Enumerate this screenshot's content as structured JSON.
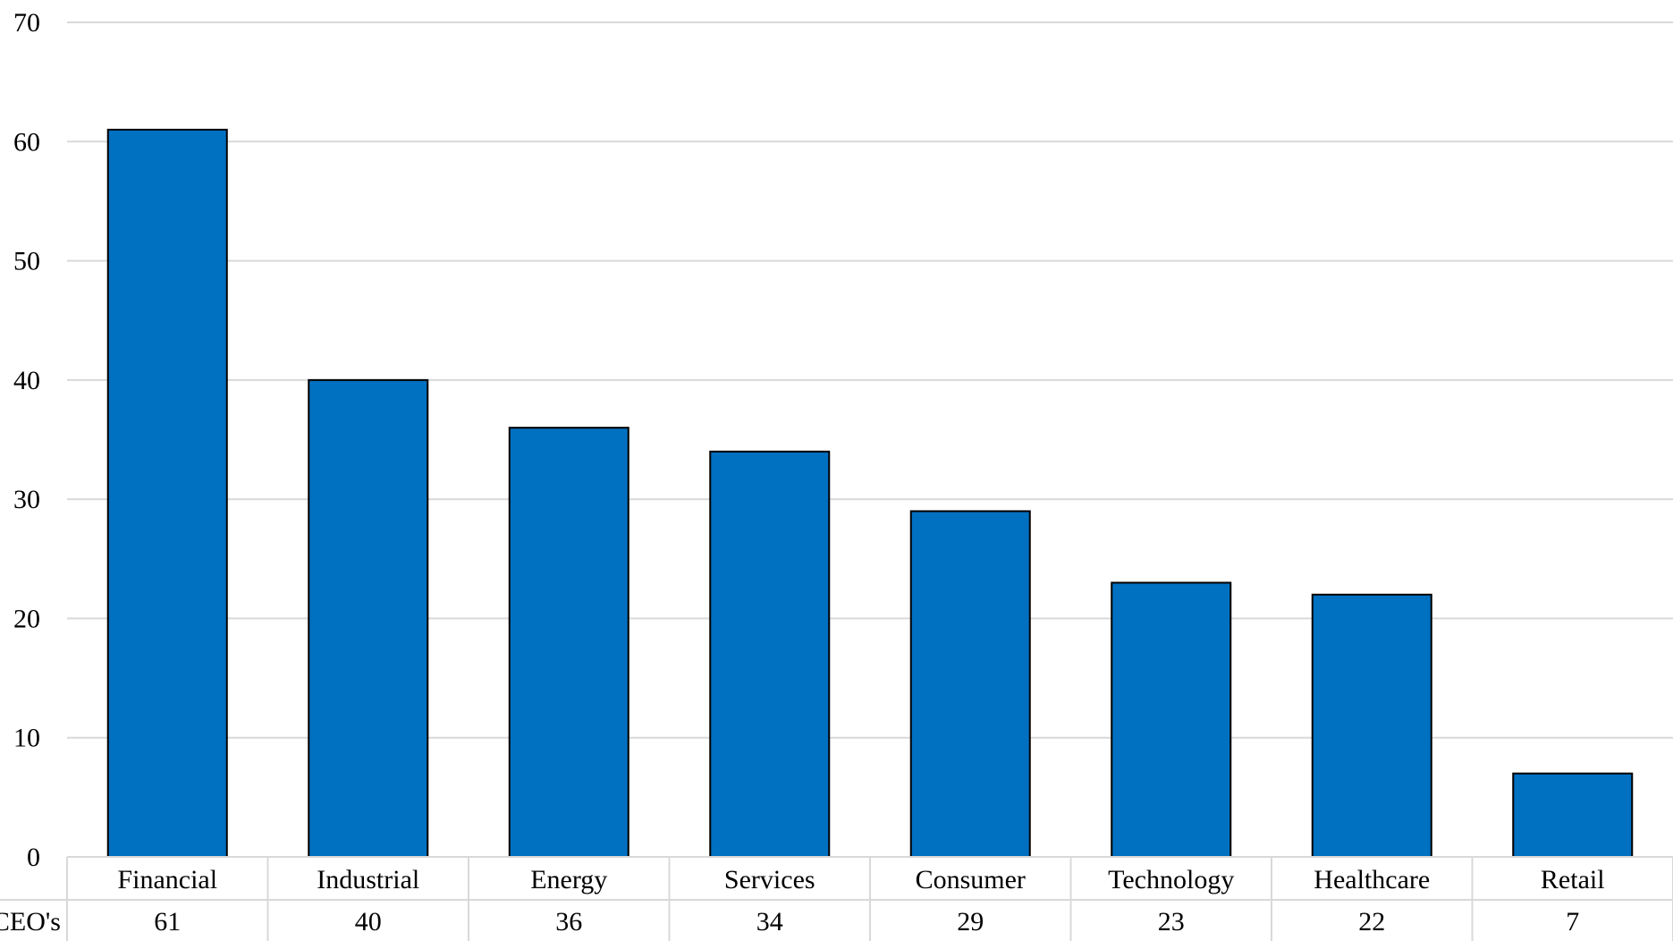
{
  "chart_data": {
    "type": "bar",
    "categories": [
      "Financial",
      "Industrial",
      "Energy",
      "Services",
      "Consumer",
      "Technology",
      "Healthcare",
      "Retail"
    ],
    "series": [
      {
        "name": "CEO's",
        "values": [
          61,
          40,
          36,
          34,
          29,
          23,
          22,
          7
        ]
      }
    ],
    "ylim": [
      0,
      70
    ],
    "yticks": [
      0,
      10,
      20,
      30,
      40,
      50,
      60,
      70
    ],
    "grid": true,
    "bar_color": "#0070C0",
    "data_table": {
      "row_header": "CEO's",
      "values": [
        "61",
        "40",
        "36",
        "34",
        "29",
        "23",
        "22",
        "7"
      ]
    }
  }
}
